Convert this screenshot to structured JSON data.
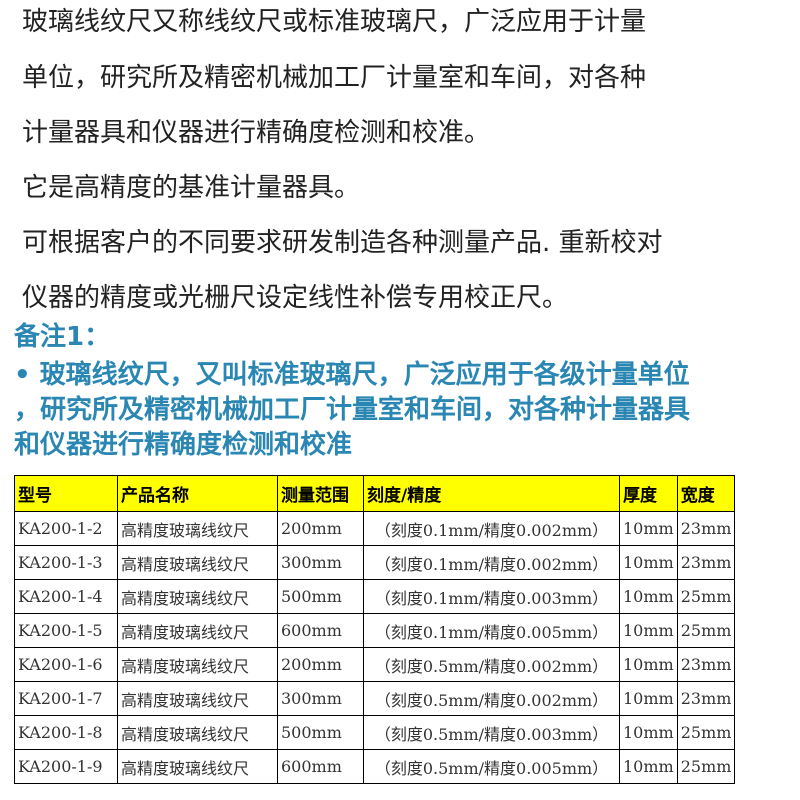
{
  "intro_lines": [
    "玻璃线纹尺又称线纹尺或标准玻璃尺，广泛应用于计量",
    "单位，研究所及精密机械加工厂计量室和车间，对各种",
    "计量器具和仪器进行精确度检测和校准。",
    "它是高精度的基准计量器具。",
    "可根据客户的不同要求研发制造各种测量产品. 重新校对",
    "仪器的精度或光栅尺设定线性补偿专用校正尺。"
  ],
  "note": {
    "title": "备注1：",
    "lines": [
      "•  玻璃线纹尺，又叫标准玻璃尺，广泛应用于各级计量单位",
      "，研究所及精密机械加工厂计量室和车间，对各种计量器具",
      "和仪器进行精确度检测和校准"
    ]
  },
  "colors": {
    "note_text": "#2a86b2",
    "header_bg": "#ffff00"
  },
  "table": {
    "headers": [
      "型号",
      "产品名称",
      "测量范围",
      "刻度/精度",
      "厚度",
      "宽度"
    ],
    "rows": [
      [
        "KA200-1-2",
        "高精度玻璃线纹尺",
        "200mm",
        "（刻度0.1mm/精度0.002mm）",
        "10mm",
        "23mm"
      ],
      [
        "KA200-1-3",
        "高精度玻璃线纹尺",
        "300mm",
        "（刻度0.1mm/精度0.002mm）",
        "10mm",
        "23mm"
      ],
      [
        "KA200-1-4",
        "高精度玻璃线纹尺",
        "500mm",
        "（刻度0.1mm/精度0.003mm）",
        "10mm",
        "25mm"
      ],
      [
        "KA200-1-5",
        "高精度玻璃线纹尺",
        "600mm",
        "（刻度0.1mm/精度0.005mm）",
        "10mm",
        "25mm"
      ],
      [
        "KA200-1-6",
        "高精度玻璃线纹尺",
        "200mm",
        "（刻度0.5mm/精度0.002mm）",
        "10mm",
        "23mm"
      ],
      [
        "KA200-1-7",
        "高精度玻璃线纹尺",
        "300mm",
        "（刻度0.5mm/精度0.002mm）",
        "10mm",
        "23mm"
      ],
      [
        "KA200-1-8",
        "高精度玻璃线纹尺",
        "500mm",
        "（刻度0.5mm/精度0.003mm）",
        "10mm",
        "25mm"
      ],
      [
        "KA200-1-9",
        "高精度玻璃线纹尺",
        "600mm",
        "（刻度0.5mm/精度0.005mm）",
        "10mm",
        "25mm"
      ]
    ]
  }
}
